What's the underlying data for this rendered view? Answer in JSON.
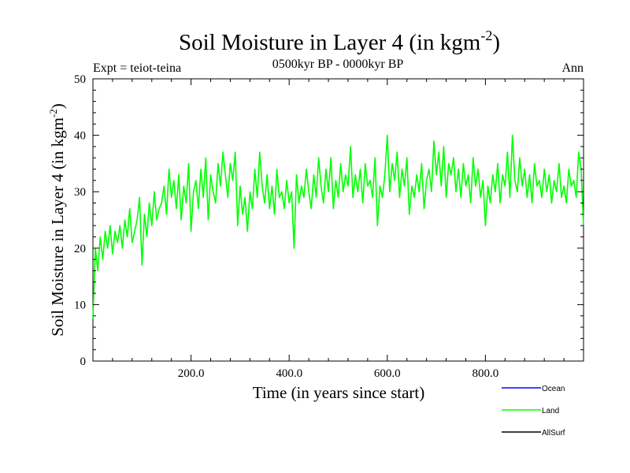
{
  "chart_data": {
    "type": "line",
    "title": "Soil Moisture in Layer 4 (in kgm",
    "title_superscript": "-2",
    "title_close": ")",
    "subtitle": "0500kyr BP - 0000kyr BP",
    "left_note": "Expt = teiot-teina",
    "right_note": "Ann",
    "xlabel": "Time (in years since start)",
    "ylabel": "Soil Moisture in Layer 4 (in kgm",
    "ylabel_superscript": "-2",
    "ylabel_close": ")",
    "xlim": [
      0,
      1000
    ],
    "ylim": [
      0,
      50
    ],
    "x_ticks": [
      200,
      400,
      600,
      800
    ],
    "x_tick_labels": [
      "200.0",
      "400.0",
      "600.0",
      "800.0"
    ],
    "y_ticks": [
      0,
      10,
      20,
      30,
      40,
      50
    ],
    "y_tick_labels": [
      "0",
      "10",
      "20",
      "30",
      "40",
      "50"
    ],
    "legend": [
      {
        "name": "Ocean",
        "color": "#0000ff"
      },
      {
        "name": "Land",
        "color": "#00ff00"
      },
      {
        "name": "AllSurf",
        "color": "#000000"
      }
    ],
    "series": [
      {
        "name": "Land",
        "color": "#00ff00",
        "x": [
          0,
          5,
          10,
          15,
          20,
          25,
          30,
          35,
          40,
          45,
          50,
          55,
          60,
          65,
          70,
          75,
          80,
          85,
          90,
          95,
          100,
          105,
          110,
          115,
          120,
          125,
          130,
          135,
          140,
          145,
          150,
          155,
          160,
          165,
          170,
          175,
          180,
          185,
          190,
          195,
          200,
          205,
          210,
          215,
          220,
          225,
          230,
          235,
          240,
          245,
          250,
          255,
          260,
          265,
          270,
          275,
          280,
          285,
          290,
          295,
          300,
          305,
          310,
          315,
          320,
          325,
          330,
          335,
          340,
          345,
          350,
          355,
          360,
          365,
          370,
          375,
          380,
          385,
          390,
          395,
          400,
          405,
          410,
          415,
          420,
          425,
          430,
          435,
          440,
          445,
          450,
          455,
          460,
          465,
          470,
          475,
          480,
          485,
          490,
          495,
          500,
          505,
          510,
          515,
          520,
          525,
          530,
          535,
          540,
          545,
          550,
          555,
          560,
          565,
          570,
          575,
          580,
          585,
          590,
          595,
          600,
          605,
          610,
          615,
          620,
          625,
          630,
          635,
          640,
          645,
          650,
          655,
          660,
          665,
          670,
          675,
          680,
          685,
          690,
          695,
          700,
          705,
          710,
          715,
          720,
          725,
          730,
          735,
          740,
          745,
          750,
          755,
          760,
          765,
          770,
          775,
          780,
          785,
          790,
          795,
          800,
          805,
          810,
          815,
          820,
          825,
          830,
          835,
          840,
          845,
          850,
          855,
          860,
          865,
          870,
          875,
          880,
          885,
          890,
          895,
          900,
          905,
          910,
          915,
          920,
          925,
          930,
          935,
          940,
          945,
          950,
          955,
          960,
          965,
          970,
          975,
          980,
          985,
          990,
          995,
          1000
        ],
        "values": [
          7.5,
          20,
          16,
          22,
          18,
          23,
          20,
          24,
          19,
          23,
          21,
          24,
          20,
          25,
          22,
          27,
          21,
          23,
          25,
          29,
          17,
          26,
          22,
          28,
          24,
          30,
          25,
          27,
          28,
          31,
          26,
          34,
          29,
          32,
          27,
          33,
          25,
          31,
          28,
          35,
          23,
          30,
          32,
          27,
          34,
          29,
          36,
          25,
          33,
          30,
          28,
          35,
          31,
          37,
          33,
          29,
          35,
          32,
          37,
          24,
          31,
          26,
          29,
          23,
          30,
          27,
          34,
          29,
          37,
          31,
          28,
          33,
          27,
          31,
          26,
          34,
          29,
          30,
          27,
          32,
          28,
          30,
          20,
          33,
          28,
          31,
          29,
          34,
          30,
          27,
          33,
          29,
          36,
          31,
          28,
          34,
          30,
          36,
          27,
          32,
          29,
          35,
          30,
          33,
          31,
          38,
          29,
          33,
          30,
          34,
          28,
          35,
          31,
          32,
          29,
          36,
          24,
          31,
          29,
          33,
          40,
          30,
          35,
          32,
          37,
          29,
          34,
          31,
          36,
          26,
          31,
          29,
          33,
          30,
          35,
          27,
          32,
          34,
          30,
          39,
          33,
          37,
          31,
          38,
          29,
          35,
          33,
          36,
          30,
          34,
          29,
          35,
          31,
          33,
          28,
          36,
          31,
          34,
          29,
          32,
          24,
          31,
          28,
          33,
          30,
          35,
          28,
          33,
          31,
          37,
          29,
          40,
          32,
          30,
          36,
          31,
          34,
          29,
          33,
          28,
          35,
          31,
          32,
          29,
          34,
          30,
          33,
          28,
          32,
          30,
          35,
          29,
          31,
          28,
          34,
          31,
          32,
          29,
          37,
          34,
          24
        ]
      }
    ]
  }
}
